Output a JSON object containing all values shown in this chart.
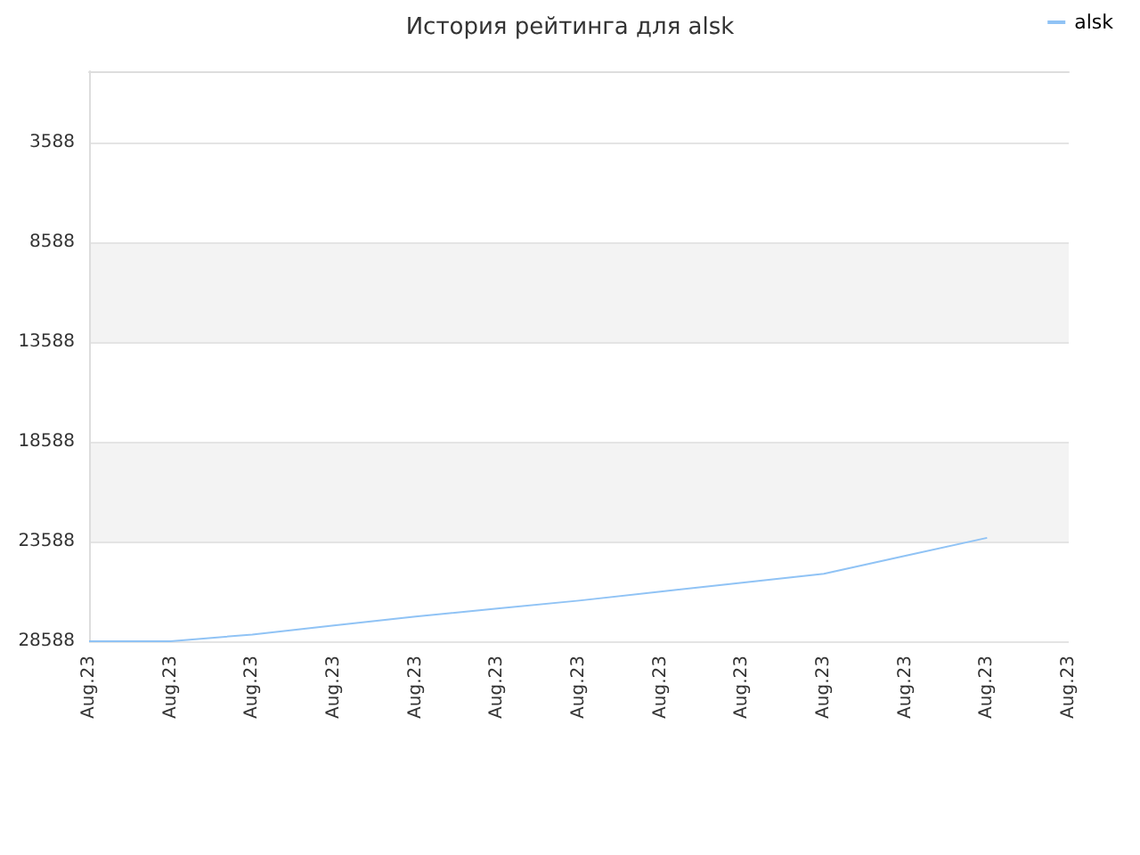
{
  "chart_data": {
    "type": "line",
    "title": "История рейтинга для alsk",
    "categories": [
      "Aug.23",
      "Aug.23",
      "Aug.23",
      "Aug.23",
      "Aug.23",
      "Aug.23",
      "Aug.23",
      "Aug.23",
      "Aug.23",
      "Aug.23",
      "Aug.23",
      "Aug.23",
      "Aug.23"
    ],
    "series": [
      {
        "name": "alsk",
        "color": "#90c3f5",
        "values": [
          28588,
          28588,
          28250,
          27800,
          27350,
          26950,
          26550,
          26100,
          25650,
          25200,
          24300,
          23400,
          null
        ]
      }
    ],
    "ylim": [
      28588,
      0
    ],
    "yticks": [
      3588,
      8588,
      13588,
      18588,
      23588,
      28588
    ],
    "grid": "y",
    "legend": "top right",
    "marker": "none",
    "line_style": "solid"
  }
}
